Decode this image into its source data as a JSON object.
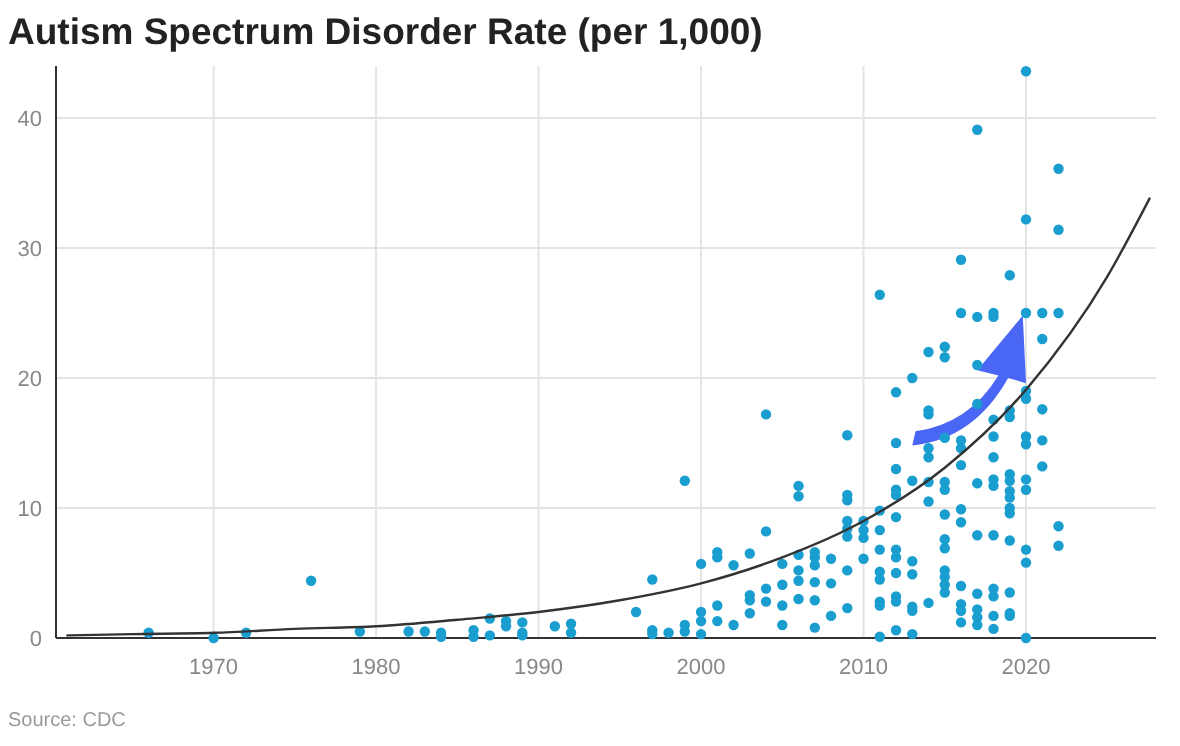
{
  "chart_data": {
    "type": "scatter",
    "title": "Autism Spectrum Disorder Rate (per 1,000)",
    "annotations": [
      "Source: CDC"
    ],
    "xlim": [
      1960.3,
      2028
    ],
    "xticks": [
      1970,
      1980,
      1990,
      2000,
      2010,
      2020
    ],
    "ylim": [
      0,
      44
    ],
    "yticks": [
      0,
      10,
      20,
      30,
      40
    ],
    "grid": true,
    "marker": "circle",
    "series": [
      {
        "color": "#1a9ed0",
        "x": [
          1966,
          1970,
          1972,
          1976,
          1979,
          1982,
          1983,
          1984,
          1984,
          1986,
          1986,
          1987,
          1987,
          1988,
          1988,
          1989,
          1989,
          1989,
          1991,
          1992,
          1992,
          1996,
          1997,
          1997,
          1997,
          1998,
          1999,
          1999,
          1999,
          2000,
          2000,
          2000,
          2000,
          2001,
          2001,
          2001,
          2001,
          2002,
          2002,
          2003,
          2003,
          2003,
          2003,
          2004,
          2004,
          2004,
          2004,
          2005,
          2005,
          2005,
          2005,
          2006,
          2006,
          2006,
          2006,
          2006,
          2006,
          2007,
          2007,
          2007,
          2007,
          2007,
          2007,
          2008,
          2008,
          2008,
          2009,
          2009,
          2009,
          2009,
          2009,
          2009,
          2009,
          2009,
          2010,
          2010,
          2010,
          2010,
          2011,
          2011,
          2011,
          2011,
          2011,
          2011,
          2011,
          2011,
          2011,
          2012,
          2012,
          2012,
          2012,
          2012,
          2012,
          2012,
          2012,
          2012,
          2012,
          2012,
          2012,
          2013,
          2013,
          2013,
          2013,
          2013,
          2013,
          2013,
          2014,
          2014,
          2014,
          2014,
          2014,
          2014,
          2014,
          2014,
          2015,
          2015,
          2015,
          2015,
          2015,
          2015,
          2015,
          2015,
          2015,
          2015,
          2015,
          2015,
          2016,
          2016,
          2016,
          2016,
          2016,
          2016,
          2016,
          2016,
          2016,
          2016,
          2016,
          2017,
          2017,
          2017,
          2017,
          2017,
          2017,
          2017,
          2017,
          2017,
          2017,
          2018,
          2018,
          2018,
          2018,
          2018,
          2018,
          2018,
          2018,
          2018,
          2018,
          2018,
          2018,
          2019,
          2019,
          2019,
          2019,
          2019,
          2019,
          2019,
          2019,
          2019,
          2019,
          2019,
          2019,
          2019,
          2020,
          2020,
          2020,
          2020,
          2020,
          2020,
          2020,
          2020,
          2020,
          2020,
          2020,
          2020,
          2021,
          2021,
          2021,
          2021,
          2021,
          2022,
          2022,
          2022,
          2022,
          2022
        ],
        "values": [
          0.4,
          0,
          0.4,
          4.4,
          0.5,
          0.5,
          0.5,
          0.4,
          0.1,
          0.6,
          0.1,
          1.5,
          0.2,
          1.3,
          0.9,
          1.2,
          0.4,
          0.2,
          0.9,
          1.1,
          0.4,
          2.0,
          4.5,
          0.6,
          0.3,
          0.4,
          12.1,
          1.0,
          0.5,
          5.7,
          2.0,
          1.3,
          0.3,
          6.6,
          6.2,
          2.5,
          1.3,
          5.6,
          1.0,
          6.5,
          3.3,
          2.9,
          1.9,
          17.2,
          8.2,
          3.8,
          2.8,
          5.7,
          4.1,
          2.5,
          1.0,
          11.7,
          10.9,
          6.4,
          5.2,
          4.4,
          3.0,
          6.6,
          6.2,
          5.6,
          4.3,
          2.9,
          0.8,
          6.1,
          4.2,
          1.7,
          15.6,
          11.0,
          10.6,
          9.0,
          8.4,
          7.8,
          5.2,
          2.3,
          9.0,
          8.3,
          7.7,
          6.1,
          26.4,
          9.8,
          8.3,
          6.8,
          5.1,
          4.5,
          2.8,
          2.5,
          0.1,
          18.9,
          15.0,
          13.0,
          11.4,
          11.0,
          9.3,
          6.8,
          6.2,
          5.0,
          3.2,
          2.8,
          0.6,
          20.0,
          12.1,
          5.9,
          4.9,
          2.4,
          2.1,
          0.3,
          22.0,
          17.5,
          17.2,
          14.6,
          13.9,
          12.0,
          10.5,
          2.7,
          22.4,
          21.6,
          15.4,
          12.0,
          11.4,
          9.5,
          7.6,
          6.9,
          5.2,
          4.7,
          4.1,
          3.5,
          29.1,
          25.0,
          15.2,
          14.6,
          13.3,
          9.9,
          8.9,
          4.0,
          2.6,
          2.1,
          1.2,
          39.1,
          24.7,
          21.0,
          18.0,
          11.9,
          7.9,
          3.4,
          2.2,
          1.6,
          1.0,
          25.0,
          24.7,
          16.8,
          15.5,
          13.9,
          12.2,
          11.7,
          7.9,
          3.8,
          3.2,
          1.7,
          0.7,
          27.9,
          17.5,
          17.0,
          12.6,
          12.1,
          11.3,
          10.8,
          10.0,
          9.6,
          7.5,
          3.5,
          1.9,
          1.7,
          43.6,
          32.2,
          25.0,
          19.0,
          18.4,
          15.5,
          14.9,
          12.2,
          11.4,
          6.8,
          5.8,
          0,
          25.0,
          23.0,
          17.6,
          15.2,
          13.2,
          36.1,
          31.4,
          25.0,
          8.6,
          7.1
        ]
      },
      {
        "type": "line",
        "color": "#333333",
        "marker": "none",
        "line_style": "solid",
        "x": [
          1961,
          1965,
          1970,
          1975,
          1980,
          1985,
          1990,
          1995,
          2000,
          2005,
          2010,
          2015,
          2020,
          2025,
          2027.6
        ],
        "values": [
          0.2,
          0.3,
          0.4,
          0.7,
          0.9,
          1.4,
          2.0,
          2.9,
          4.2,
          6.2,
          9.0,
          13.1,
          19.1,
          27.8,
          33.8
        ]
      }
    ]
  }
}
